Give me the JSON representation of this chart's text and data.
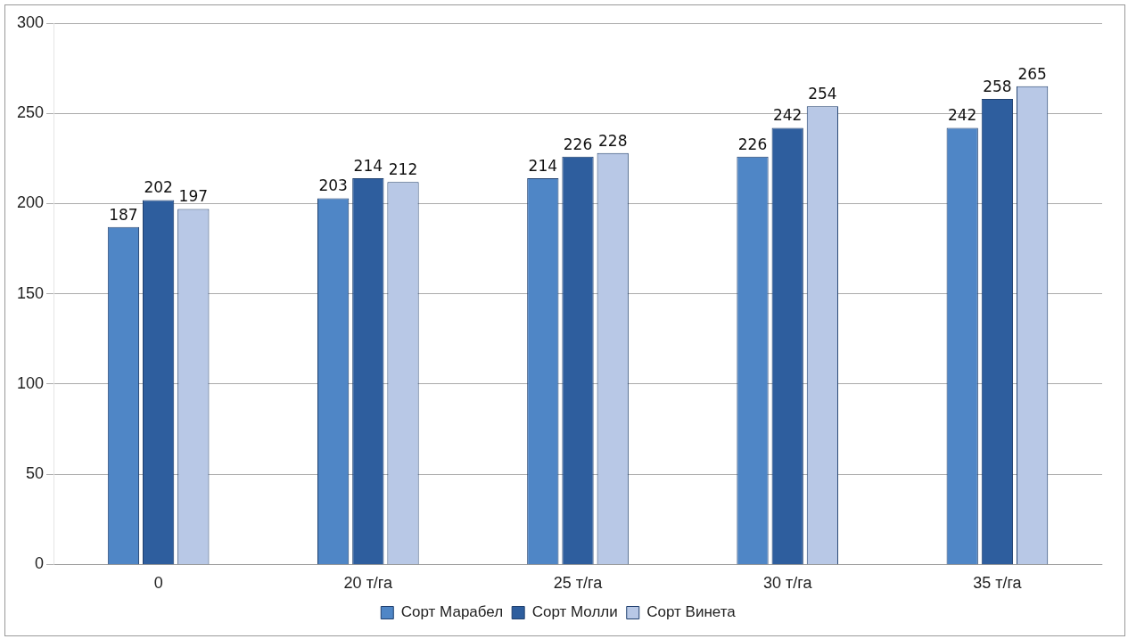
{
  "chart_data": {
    "type": "bar",
    "categories": [
      "0",
      "20 т/га",
      "25 т/га",
      "30 т/га",
      "35 т/га"
    ],
    "series": [
      {
        "name": "Сорт Марабел",
        "color": "#4f86c6",
        "values": [
          187,
          203,
          214,
          226,
          242
        ]
      },
      {
        "name": "Сорт Молли",
        "color": "#2e5e9e",
        "values": [
          202,
          214,
          226,
          242,
          258
        ]
      },
      {
        "name": "Сорт Винета",
        "color": "#b8c8e6",
        "values": [
          197,
          212,
          228,
          254,
          265
        ]
      }
    ],
    "ylim": [
      0,
      300
    ],
    "yticks": [
      0,
      50,
      100,
      150,
      200,
      250,
      300
    ],
    "grid": "y",
    "legend": "bottom",
    "data_labels": true
  }
}
